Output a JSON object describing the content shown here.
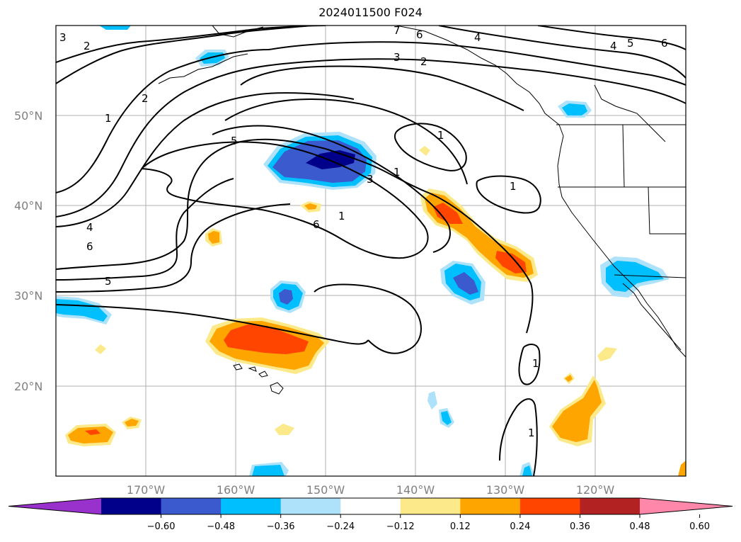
{
  "title": "2024011500 F024",
  "map": {
    "lat_labels": [
      "50°N",
      "40°N",
      "30°N",
      "20°N"
    ],
    "lon_labels": [
      "170°W",
      "160°W",
      "150°W",
      "140°W",
      "130°W",
      "120°W"
    ],
    "contour_labels": [
      "3",
      "2",
      "1",
      "2",
      "5",
      "3",
      "1",
      "4",
      "6",
      "5",
      "6",
      "1",
      "7",
      "6",
      "2",
      "3",
      "4",
      "5",
      "4",
      "6",
      "1",
      "1",
      "1",
      "1"
    ]
  },
  "colorbar": {
    "ticks": [
      "−0.60",
      "−0.48",
      "−0.36",
      "−0.24",
      "−0.12",
      "0.12",
      "0.24",
      "0.36",
      "0.48",
      "0.60"
    ],
    "colors": [
      "#9932cc",
      "#00008b",
      "#3a5acd",
      "#00bfff",
      "#aee2fb",
      "#ffffff",
      "#fce98a",
      "#ffa500",
      "#ff4500",
      "#b22222",
      "#ff88aa"
    ]
  }
}
